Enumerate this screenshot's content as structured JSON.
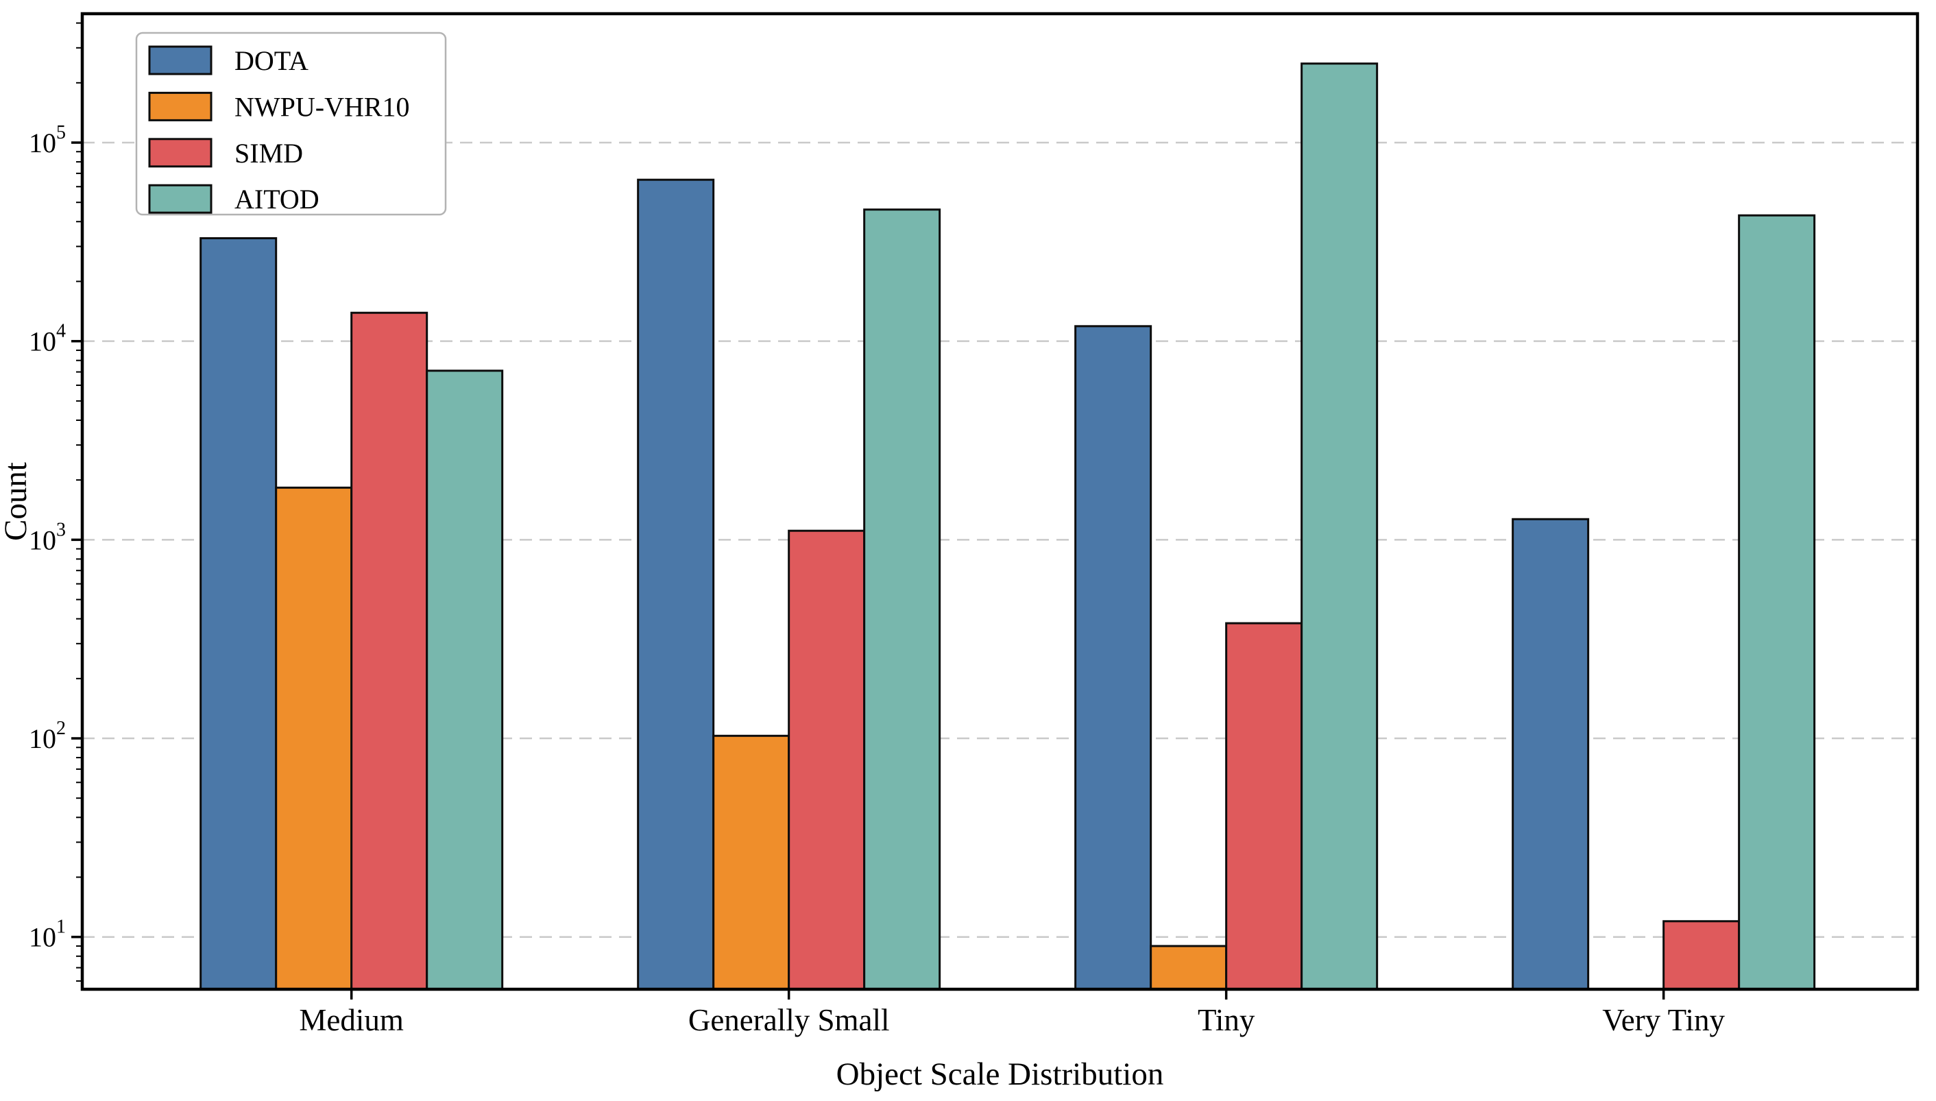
{
  "chart_data": {
    "type": "bar",
    "title": "",
    "xlabel": "Object Scale Distribution",
    "ylabel": "Count",
    "categories": [
      "Medium",
      "Generally Small",
      "Tiny",
      "Very Tiny"
    ],
    "series": [
      {
        "name": "DOTA",
        "color": "#4B78A8",
        "values": [
          33000,
          65000,
          11900,
          1270
        ]
      },
      {
        "name": "NWPU-VHR10",
        "color": "#EF8E2B",
        "values": [
          1830,
          103,
          9,
          0
        ]
      },
      {
        "name": "SIMD",
        "color": "#DF5A5C",
        "values": [
          13900,
          1110,
          380,
          12
        ]
      },
      {
        "name": "AITOD",
        "color": "#78B7AD",
        "values": [
          7100,
          46000,
          250000,
          43000
        ]
      }
    ],
    "yscale": "log",
    "ylim": [
      5.4,
      446000
    ],
    "y_tick_exponents": [
      5,
      4,
      3,
      2,
      1
    ],
    "y_tick_base": "10",
    "grid": {
      "axis": "y",
      "style": "dashed",
      "color": "#c9c9c9",
      "on": true
    },
    "legend": {
      "position": "upper-left",
      "entries": [
        "DOTA",
        "NWPU-VHR10",
        "SIMD",
        "AITOD"
      ]
    },
    "bar_edge_color": "#0d0d0d",
    "axes_edge_color": "#000000"
  }
}
